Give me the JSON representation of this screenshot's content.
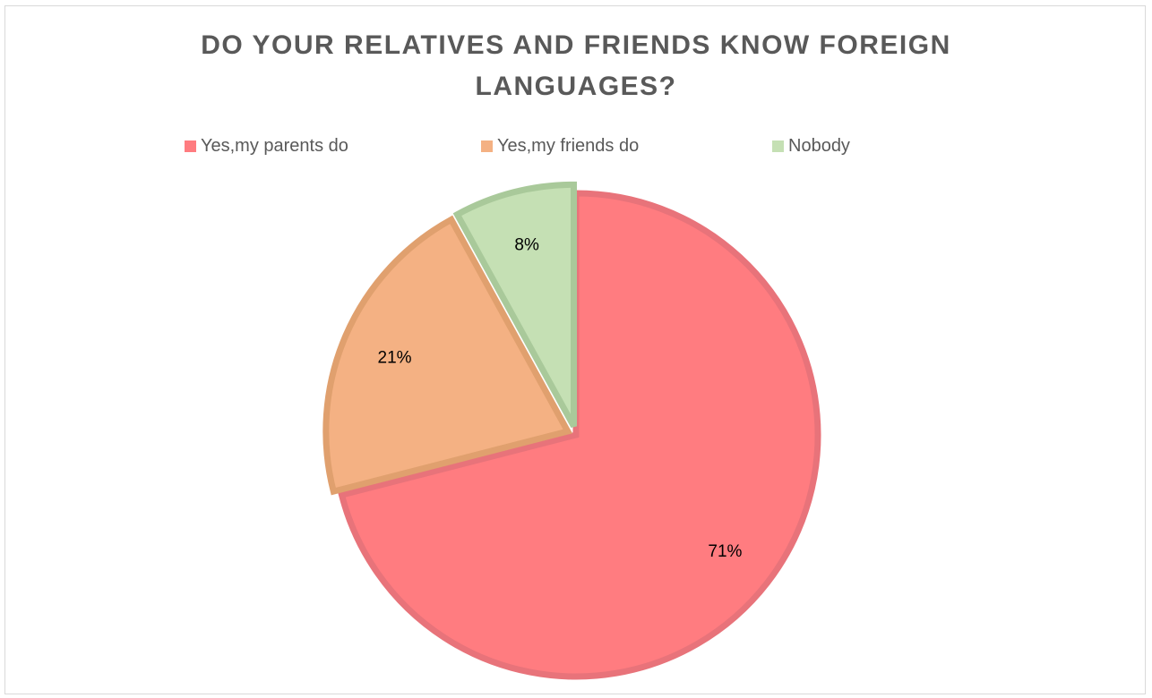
{
  "chart_data": {
    "type": "pie",
    "title": "DO YOUR RELATIVES AND FRIENDS KNOW FOREIGN LANGUAGES?",
    "title_lines": [
      "DO YOUR RELATIVES AND FRIENDS KNOW FOREIGN",
      "LANGUAGES?"
    ],
    "legend_position": "top",
    "slices": [
      {
        "label": "Yes,my parents do",
        "value": 71,
        "value_label": "71%",
        "color": "#ff7c80",
        "border": "#e8737a",
        "exploded": false
      },
      {
        "label": "Yes,my friends do",
        "value": 21,
        "value_label": "21%",
        "color": "#f4b183",
        "border": "#e0a06e",
        "exploded": true
      },
      {
        "label": "Nobody",
        "value": 8,
        "value_label": "8%",
        "color": "#c5e0b4",
        "border": "#a9c99a",
        "exploded": true
      }
    ]
  }
}
